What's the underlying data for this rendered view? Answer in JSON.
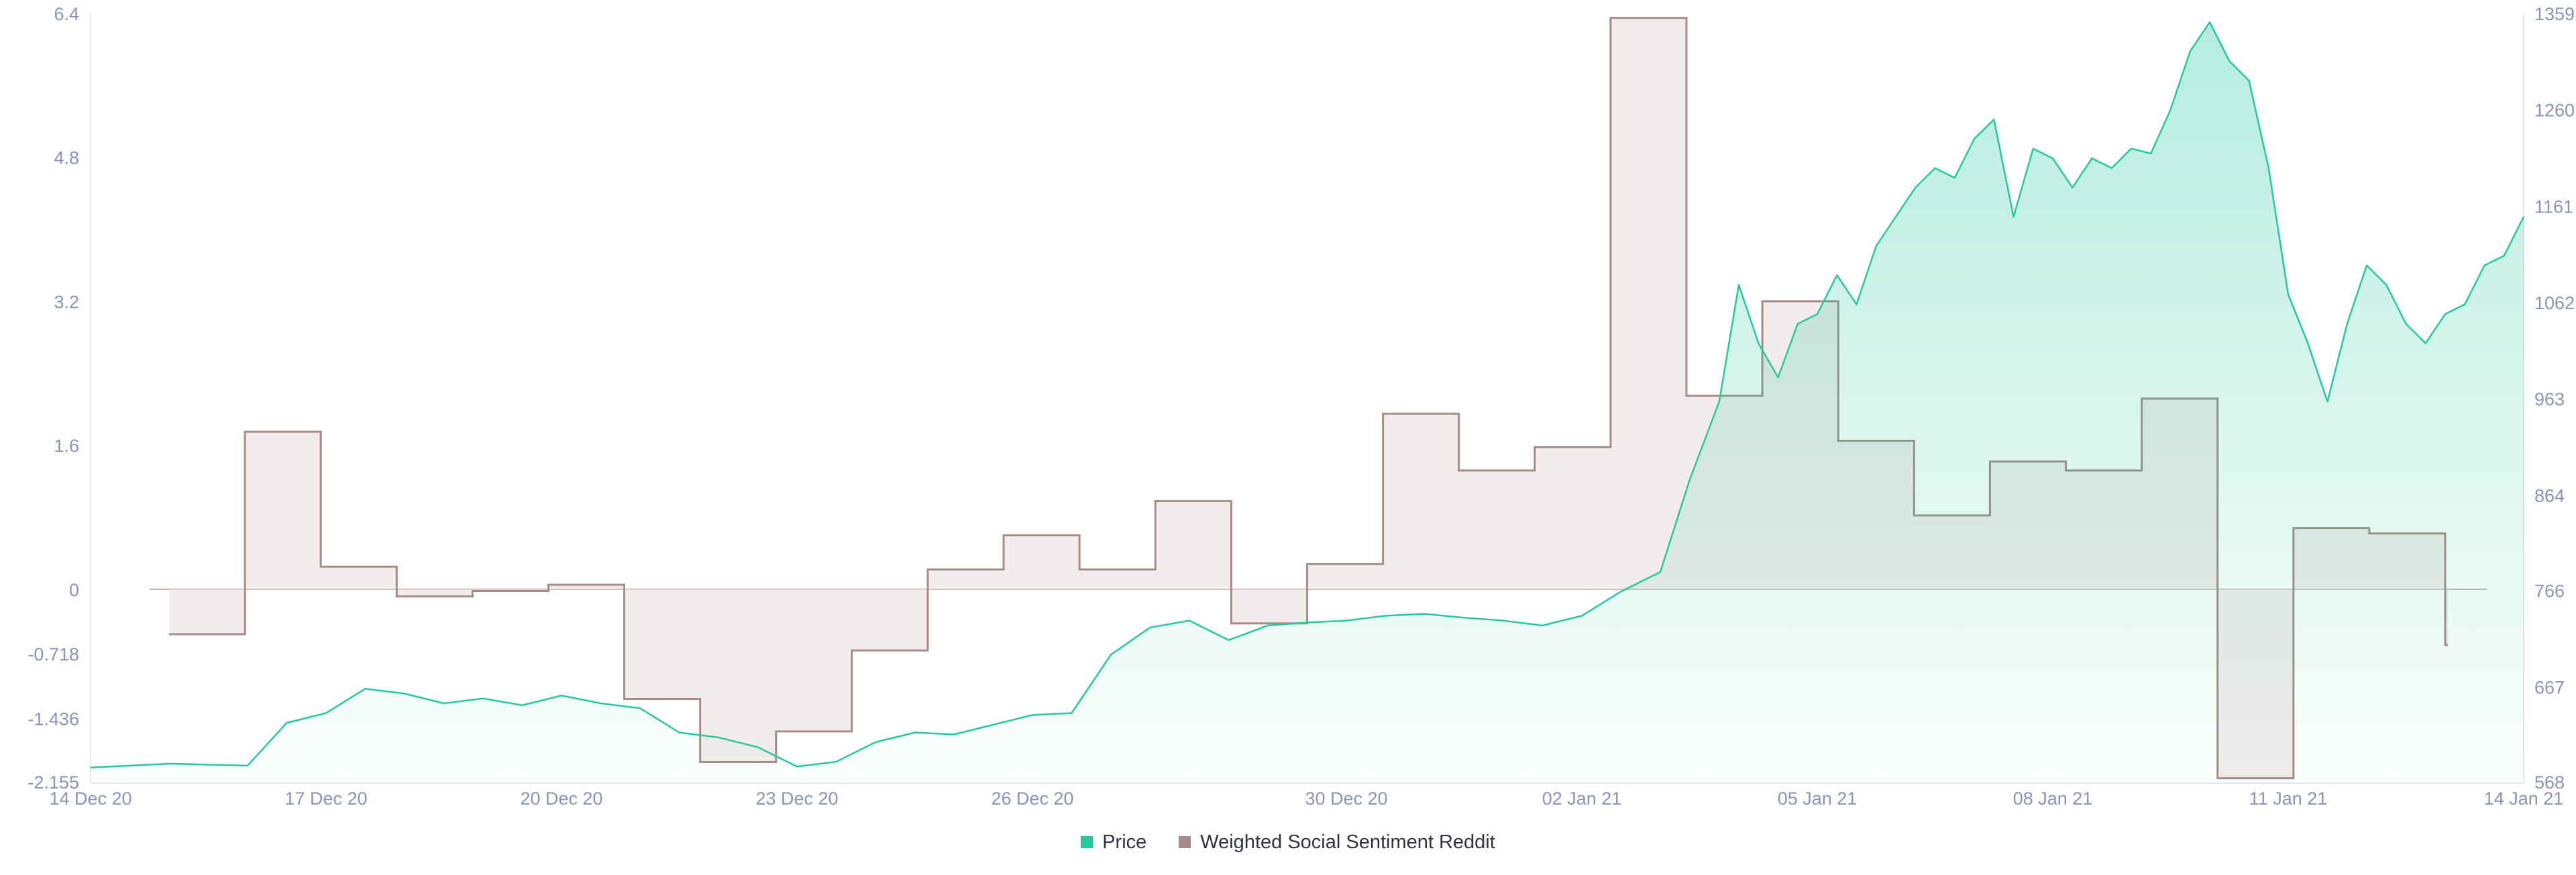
{
  "colors": {
    "price": "#26c89e",
    "sentiment": "#a58c86",
    "sentiment_fill": "#efe6e5",
    "axis_text": "#8a94b6",
    "zero_line": "#c9a8a4"
  },
  "legend": {
    "price_label": "Price",
    "sentiment_label": "Weighted Social Sentiment Reddit"
  },
  "chart_data": {
    "type": "line",
    "x_ticks": [
      "14 Dec 20",
      "17 Dec 20",
      "20 Dec 20",
      "23 Dec 20",
      "26 Dec 20",
      "30 Dec 20",
      "02 Jan 21",
      "05 Jan 21",
      "08 Jan 21",
      "11 Jan 21",
      "14 Jan 21"
    ],
    "xlim": [
      "2020-12-14",
      "2021-01-14"
    ],
    "y_left": {
      "ticks": [
        "6.4",
        "4.8",
        "3.2",
        "1.6",
        "0",
        "-0.718",
        "-1.436",
        "-2.155"
      ],
      "range": [
        -2.155,
        6.4
      ]
    },
    "y_right": {
      "ticks": [
        "1359",
        "1260",
        "1161",
        "1062",
        "963",
        "864",
        "766",
        "667",
        "568"
      ],
      "range": [
        568,
        1359
      ]
    },
    "legend_position": "bottom-center",
    "grid": false,
    "series": [
      {
        "name": "Price",
        "axis": "right",
        "style": "area",
        "points": [
          [
            "2020-12-14",
            584
          ],
          [
            "2020-12-15",
            588
          ],
          [
            "2020-12-16",
            586
          ],
          [
            "2020-12-16 12:00",
            630
          ],
          [
            "2020-12-17",
            640
          ],
          [
            "2020-12-17 12:00",
            665
          ],
          [
            "2020-12-18",
            660
          ],
          [
            "2020-12-18 12:00",
            650
          ],
          [
            "2020-12-19",
            655
          ],
          [
            "2020-12-19 12:00",
            648
          ],
          [
            "2020-12-20",
            658
          ],
          [
            "2020-12-20 12:00",
            650
          ],
          [
            "2020-12-21",
            645
          ],
          [
            "2020-12-21 12:00",
            620
          ],
          [
            "2020-12-22",
            615
          ],
          [
            "2020-12-22 12:00",
            605
          ],
          [
            "2020-12-23",
            585
          ],
          [
            "2020-12-23 12:00",
            590
          ],
          [
            "2020-12-24",
            610
          ],
          [
            "2020-12-24 12:00",
            620
          ],
          [
            "2020-12-25",
            618
          ],
          [
            "2020-12-25 12:00",
            628
          ],
          [
            "2020-12-26",
            638
          ],
          [
            "2020-12-26 12:00",
            640
          ],
          [
            "2020-12-27",
            700
          ],
          [
            "2020-12-27 12:00",
            728
          ],
          [
            "2020-12-28",
            735
          ],
          [
            "2020-12-28 12:00",
            715
          ],
          [
            "2020-12-29",
            730
          ],
          [
            "2020-12-29 12:00",
            733
          ],
          [
            "2020-12-30",
            735
          ],
          [
            "2020-12-30 12:00",
            740
          ],
          [
            "2020-12-31",
            742
          ],
          [
            "2020-12-31 12:00",
            738
          ],
          [
            "2021-01-01",
            735
          ],
          [
            "2021-01-01 12:00",
            730
          ],
          [
            "2021-01-02",
            740
          ],
          [
            "2021-01-02 12:00",
            765
          ],
          [
            "2021-01-03",
            785
          ],
          [
            "2021-01-03 09:00",
            880
          ],
          [
            "2021-01-03 18:00",
            960
          ],
          [
            "2021-01-04",
            1080
          ],
          [
            "2021-01-04 06:00",
            1020
          ],
          [
            "2021-01-04 12:00",
            985
          ],
          [
            "2021-01-04 18:00",
            1040
          ],
          [
            "2021-01-05",
            1050
          ],
          [
            "2021-01-05 06:00",
            1090
          ],
          [
            "2021-01-05 12:00",
            1060
          ],
          [
            "2021-01-05 18:00",
            1120
          ],
          [
            "2021-01-06",
            1150
          ],
          [
            "2021-01-06 06:00",
            1180
          ],
          [
            "2021-01-06 12:00",
            1200
          ],
          [
            "2021-01-06 18:00",
            1190
          ],
          [
            "2021-01-07",
            1230
          ],
          [
            "2021-01-07 06:00",
            1250
          ],
          [
            "2021-01-07 12:00",
            1150
          ],
          [
            "2021-01-07 18:00",
            1220
          ],
          [
            "2021-01-08",
            1210
          ],
          [
            "2021-01-08 06:00",
            1180
          ],
          [
            "2021-01-08 12:00",
            1210
          ],
          [
            "2021-01-08 18:00",
            1200
          ],
          [
            "2021-01-09",
            1220
          ],
          [
            "2021-01-09 06:00",
            1215
          ],
          [
            "2021-01-09 12:00",
            1260
          ],
          [
            "2021-01-09 18:00",
            1320
          ],
          [
            "2021-01-10",
            1350
          ],
          [
            "2021-01-10 06:00",
            1310
          ],
          [
            "2021-01-10 12:00",
            1290
          ],
          [
            "2021-01-10 18:00",
            1200
          ],
          [
            "2021-01-11",
            1070
          ],
          [
            "2021-01-11 06:00",
            1020
          ],
          [
            "2021-01-11 12:00",
            960
          ],
          [
            "2021-01-11 18:00",
            1040
          ],
          [
            "2021-01-12",
            1100
          ],
          [
            "2021-01-12 06:00",
            1080
          ],
          [
            "2021-01-12 12:00",
            1040
          ],
          [
            "2021-01-12 18:00",
            1020
          ],
          [
            "2021-01-13",
            1050
          ],
          [
            "2021-01-13 06:00",
            1060
          ],
          [
            "2021-01-13 12:00",
            1100
          ],
          [
            "2021-01-13 18:00",
            1110
          ],
          [
            "2021-01-14",
            1150
          ]
        ]
      },
      {
        "name": "Weighted Social Sentiment Reddit",
        "axis": "left",
        "style": "step",
        "start": "2020-12-15",
        "end": "2021-01-13",
        "values": [
          -0.5,
          1.75,
          0.25,
          -0.08,
          -0.02,
          0.05,
          -1.22,
          -1.92,
          -1.58,
          -0.68,
          0.22,
          0.6,
          0.22,
          0.98,
          -0.38,
          0.28,
          1.95,
          1.32,
          1.58,
          6.35,
          2.15,
          3.2,
          1.65,
          0.82,
          1.42,
          1.32,
          2.12,
          -2.1,
          0.68,
          0.62,
          -0.62
        ]
      }
    ]
  }
}
